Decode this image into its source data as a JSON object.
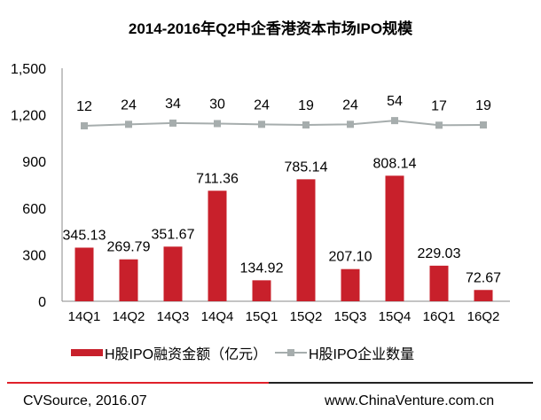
{
  "chart_data": {
    "type": "bar",
    "title": "2014-2016年Q2中企香港资本市场IPO规模",
    "categories": [
      "14Q1",
      "14Q2",
      "14Q3",
      "14Q4",
      "15Q1",
      "15Q2",
      "15Q3",
      "15Q4",
      "16Q1",
      "16Q2"
    ],
    "series": [
      {
        "name": "H股IPO融资金额（亿元）",
        "type": "bar",
        "color": "#c8202b",
        "values": [
          345.13,
          269.79,
          351.67,
          711.36,
          134.92,
          785.14,
          207.1,
          808.14,
          229.03,
          72.67
        ],
        "labels": [
          "345.13",
          "269.79",
          "351.67",
          "711.36",
          "134.92",
          "785.14",
          "207.10",
          "808.14",
          "229.03",
          "72.67"
        ]
      },
      {
        "name": "H股IPO企业数量",
        "type": "line",
        "color": "#a6adad",
        "values": [
          12,
          24,
          34,
          30,
          24,
          19,
          24,
          54,
          17,
          19
        ]
      }
    ],
    "ylim": [
      0,
      1500
    ],
    "yticks": [
      "0",
      "300",
      "600",
      "900",
      "1,200",
      "1,500"
    ],
    "ytick_values": [
      0,
      300,
      600,
      900,
      1200,
      1500
    ],
    "grid": false,
    "legend_position": "bottom"
  },
  "footer": {
    "source": "CVSource, 2016.07",
    "site": "www.ChinaVenture.com.cn"
  }
}
